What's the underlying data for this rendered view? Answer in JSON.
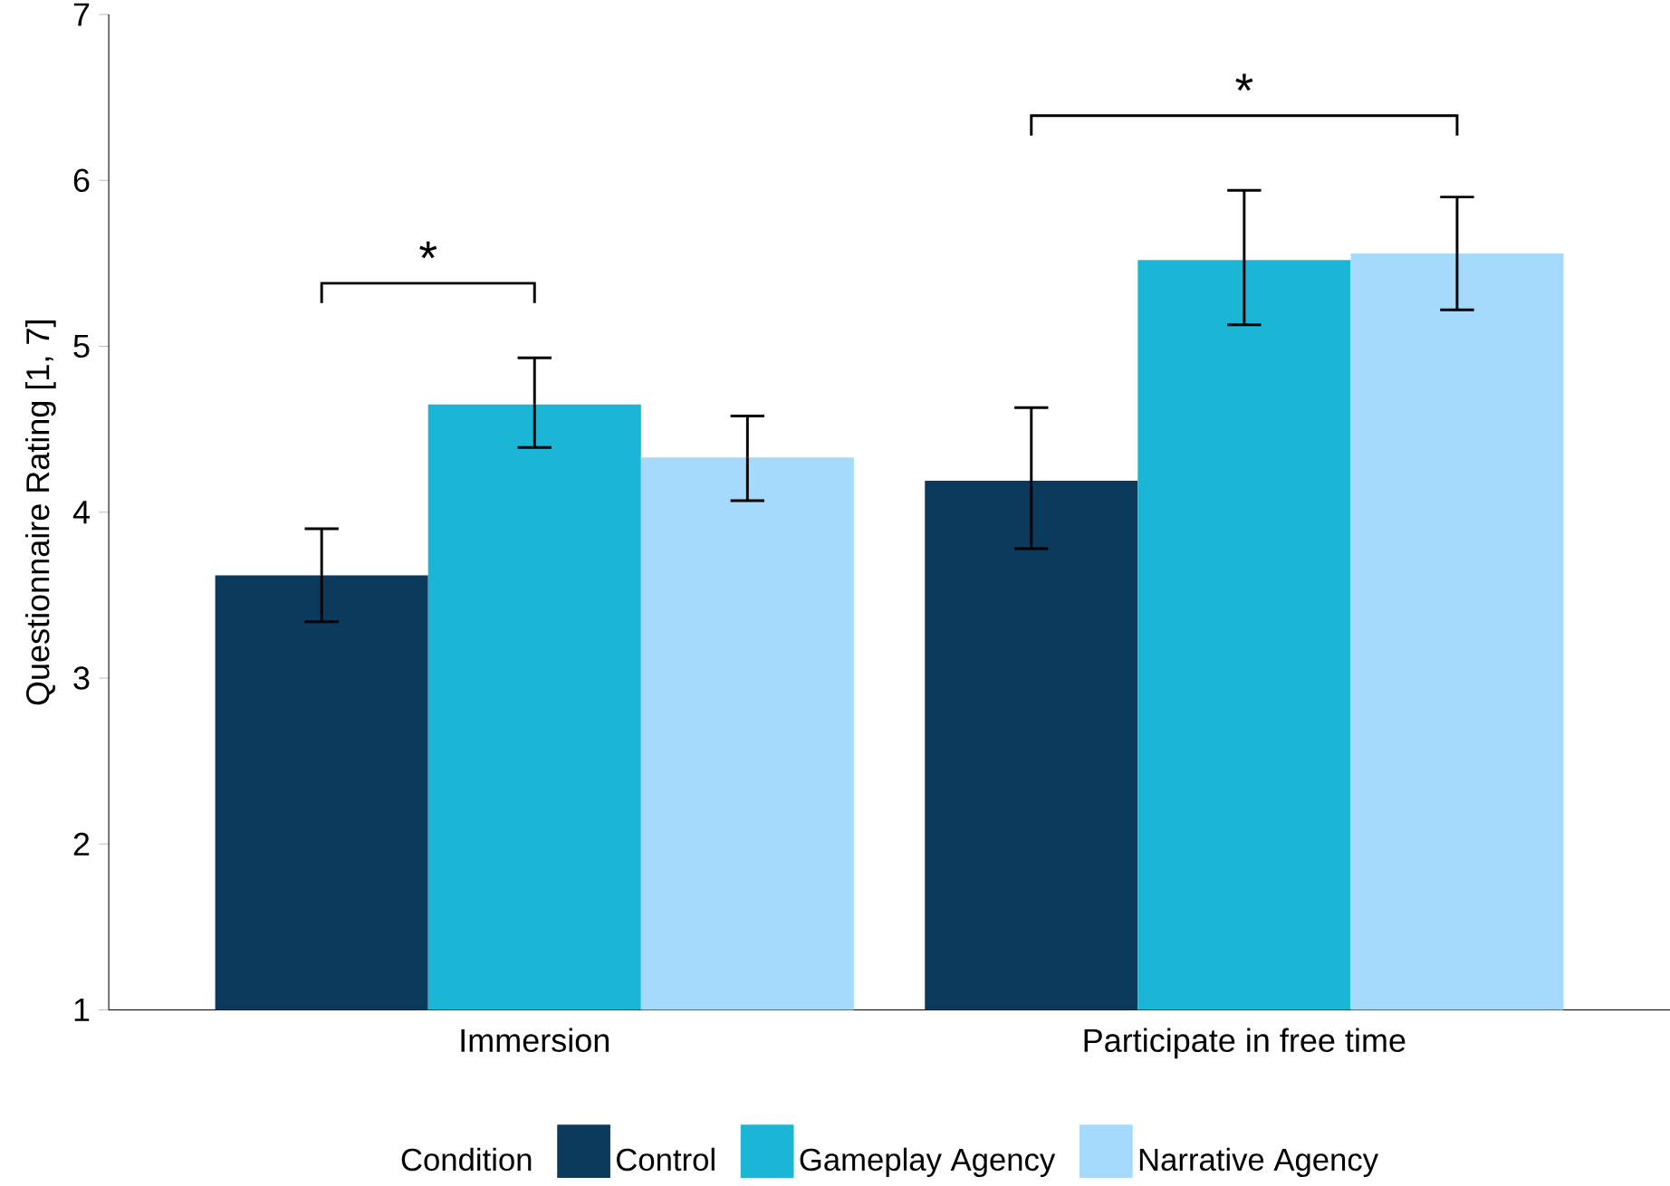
{
  "chart_data": {
    "type": "bar",
    "ylabel": "Questionnaire Rating [1, 7]",
    "legend_title": "Condition",
    "categories": [
      "Immersion",
      "Participate in free time"
    ],
    "series": [
      {
        "name": "Control",
        "color": "#0c3a5c",
        "values": [
          3.62,
          4.19
        ],
        "errors": [
          [
            3.34,
            3.9
          ],
          [
            3.78,
            4.63
          ]
        ]
      },
      {
        "name": "Gameplay Agency",
        "color": "#1bb6d6",
        "values": [
          4.65,
          5.52
        ],
        "errors": [
          [
            4.39,
            4.93
          ],
          [
            5.13,
            5.94
          ]
        ]
      },
      {
        "name": "Narrative Agency",
        "color": "#a5dafc",
        "values": [
          4.33,
          5.56
        ],
        "errors": [
          [
            4.07,
            4.58
          ],
          [
            5.22,
            5.9
          ]
        ]
      }
    ],
    "ylim": [
      1,
      7
    ],
    "yticks": [
      1,
      2,
      3,
      4,
      5,
      6,
      7
    ],
    "grid": false,
    "legend": "bottom",
    "annotations": [
      "*",
      "*"
    ]
  }
}
